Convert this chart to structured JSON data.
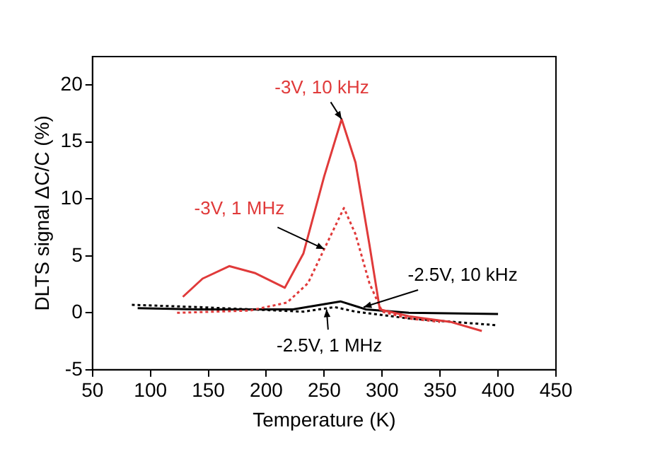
{
  "chart_data": {
    "type": "line",
    "xlabel": "Temperature (K)",
    "ylabel": "DLTS signal ΔC/C (%)",
    "xlim": [
      50,
      450
    ],
    "xticks": [
      50,
      100,
      150,
      200,
      250,
      300,
      350,
      400,
      450
    ],
    "ylim": [
      -5,
      22.5
    ],
    "yticks": [
      -5,
      0,
      5,
      10,
      15,
      20
    ],
    "grid": false,
    "legend": false,
    "marker": "none",
    "series": [
      {
        "color": "#e03a3a",
        "line_style": "solid",
        "x": [
          128,
          145,
          168,
          190,
          216,
          232,
          250,
          265,
          277,
          289,
          298,
          323,
          359,
          386
        ],
        "values": [
          1.4,
          3.0,
          4.1,
          3.5,
          2.2,
          5.2,
          12,
          17,
          13.2,
          6,
          0.3,
          -0.3,
          -0.8,
          -1.6
        ]
      },
      {
        "color": "#e03a3a",
        "line_style": "dotted",
        "x": [
          123,
          186,
          218,
          236,
          250,
          267,
          277,
          289,
          300,
          323,
          350
        ],
        "values": [
          0,
          0.2,
          0.9,
          2.6,
          5.6,
          9.2,
          6.9,
          2.6,
          0.1,
          -0.5,
          -0.8
        ]
      },
      {
        "color": "#000000",
        "line_style": "solid",
        "x": [
          89,
          141,
          223,
          264,
          286,
          323,
          400
        ],
        "values": [
          0.4,
          0.3,
          0.3,
          1.0,
          0.3,
          0,
          -0.1
        ]
      },
      {
        "color": "#000000",
        "line_style": "dotted",
        "x": [
          84,
          141,
          232,
          259,
          277,
          323,
          400
        ],
        "values": [
          0.7,
          0.5,
          0.1,
          0.5,
          0.1,
          -0.5,
          -1.1
        ]
      }
    ],
    "annotations": [
      {
        "text": "-3V, 10 kHz",
        "x": 265,
        "y": 17
      },
      {
        "text": "-3V, 1 MHz",
        "x": 250,
        "y": 5.6
      },
      {
        "text": "-2.5V, 10 kHz",
        "x": 284,
        "y": 0.5
      },
      {
        "text": "-2.5V, 1 MHz",
        "x": 252,
        "y": 0.3
      }
    ]
  }
}
